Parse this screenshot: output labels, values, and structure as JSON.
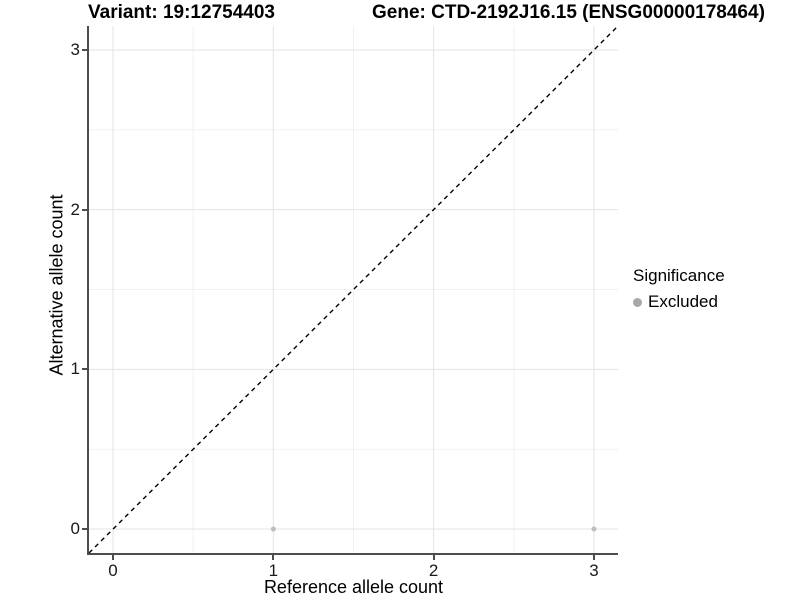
{
  "chart_data": {
    "type": "scatter",
    "title_left": "Variant: 19:12754403",
    "title_right": "Gene: CTD-2192J16.15 (ENSG00000178464)",
    "xlabel": "Reference allele count",
    "ylabel": "Alternative allele count",
    "x_ticks": [
      0,
      1,
      2,
      3
    ],
    "y_ticks": [
      0,
      1,
      2,
      3
    ],
    "xlim": [
      -0.15,
      3.15
    ],
    "ylim": [
      -0.15,
      3.15
    ],
    "grid": true,
    "grid_major_color": "#e3e3e3",
    "grid_minor_color": "#f1f1f1",
    "axis_color": "#4d4d4d",
    "background": "#ffffff",
    "reference_line": {
      "style": "dashed",
      "equation": "y = x",
      "color": "#000000"
    },
    "series": [
      {
        "name": "Excluded",
        "color": "#bebebe",
        "points": [
          [
            1,
            0
          ],
          [
            3,
            0
          ]
        ]
      }
    ],
    "legend": {
      "title": "Significance",
      "position": "right",
      "items": [
        {
          "label": "Excluded",
          "color": "#a8a8a8"
        }
      ]
    }
  }
}
